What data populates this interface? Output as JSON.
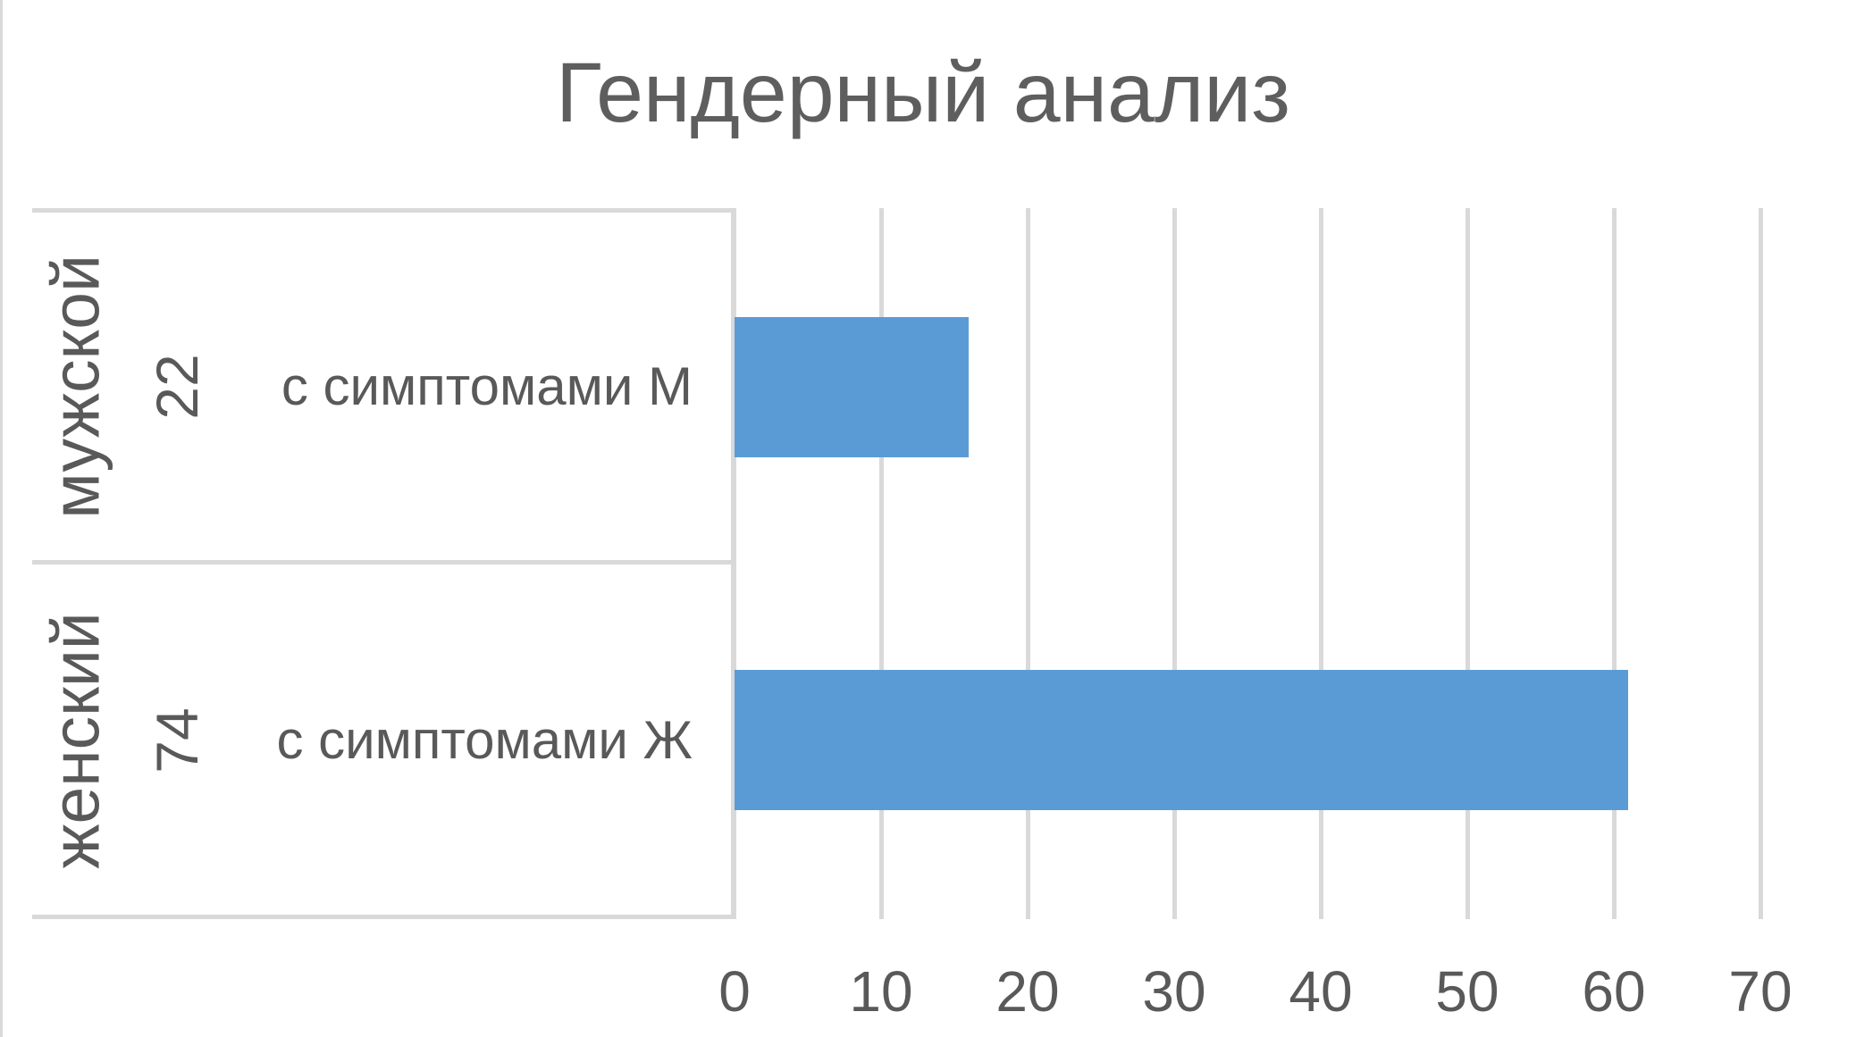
{
  "title": "Гендерный анализ",
  "colors": {
    "bar": "#5B9BD5",
    "gridline": "#D9D9D9",
    "divider": "#D9D9D9",
    "border": "#D9D9D9",
    "text": "#595959",
    "title_text": "#5E5E5E"
  },
  "chart_data": {
    "type": "bar",
    "orientation": "horizontal",
    "title": "Гендерный анализ",
    "group_labels": [
      "мужской",
      "женский"
    ],
    "group_counts": [
      "22",
      "74"
    ],
    "categories": [
      "с симптомами М",
      "с симптомами Ж"
    ],
    "values": [
      16,
      61
    ],
    "xlim": [
      0,
      70
    ],
    "xticks": [
      0,
      10,
      20,
      30,
      40,
      50,
      60,
      70
    ],
    "grid": true,
    "legend": false,
    "xlabel": "",
    "ylabel": ""
  }
}
